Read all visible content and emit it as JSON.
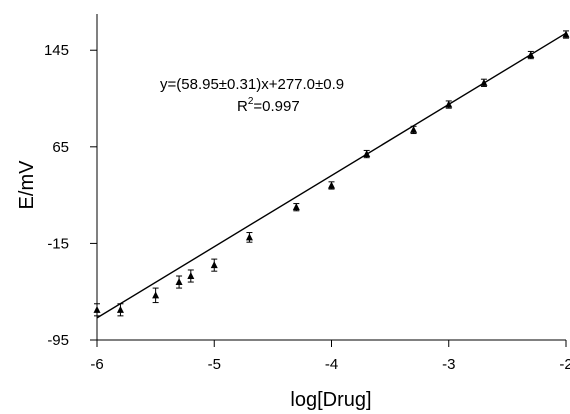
{
  "chart_data": {
    "type": "scatter",
    "xlabel": "log[Drug]",
    "ylabel": "E/mV",
    "xlim": [
      -6,
      -2
    ],
    "ylim": [
      -95,
      175
    ],
    "xticks": [
      -6,
      -5,
      -4,
      -3,
      -2
    ],
    "yticks": [
      -95,
      -15,
      65,
      145
    ],
    "grid": false,
    "annotation": {
      "equation": "y=(58.95±0.31)x+277.0±0.9",
      "r2_prefix": "R",
      "r2_sup": "2",
      "r2_value": "=0.997"
    },
    "fit_line": {
      "slope": 58.95,
      "intercept": 277.0,
      "x_range": [
        -6,
        -2
      ]
    },
    "points": [
      {
        "x": -6.0,
        "y": -70,
        "err": 5
      },
      {
        "x": -5.8,
        "y": -70,
        "err": 5
      },
      {
        "x": -5.5,
        "y": -58,
        "err": 6
      },
      {
        "x": -5.3,
        "y": -47,
        "err": 5
      },
      {
        "x": -5.2,
        "y": -42,
        "err": 5
      },
      {
        "x": -5.0,
        "y": -33,
        "err": 5
      },
      {
        "x": -4.7,
        "y": -10,
        "err": 4
      },
      {
        "x": -4.3,
        "y": 15,
        "err": 3
      },
      {
        "x": -4.0,
        "y": 33,
        "err": 3
      },
      {
        "x": -3.7,
        "y": 59,
        "err": 3
      },
      {
        "x": -3.3,
        "y": 79,
        "err": 3
      },
      {
        "x": -3.0,
        "y": 100,
        "err": 3
      },
      {
        "x": -2.7,
        "y": 118,
        "err": 3
      },
      {
        "x": -2.3,
        "y": 141,
        "err": 3
      },
      {
        "x": -2.0,
        "y": 158,
        "err": 3
      }
    ]
  }
}
